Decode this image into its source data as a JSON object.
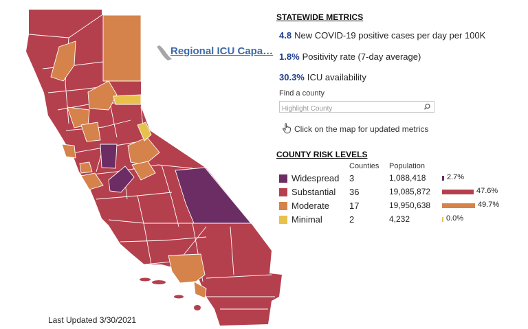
{
  "regional_link": "Regional ICU Capa…",
  "last_updated": "Last Updated 3/30/2021",
  "statewide": {
    "title": "STATEWIDE METRICS",
    "metrics": [
      {
        "value": "4.8",
        "label": "New COVID-19 positive cases per day per 100K"
      },
      {
        "value": "1.8%",
        "label": "Positivity rate (7-day average)"
      },
      {
        "value": "30.3%",
        "label": "ICU availability"
      }
    ]
  },
  "search": {
    "label": "Find a county",
    "placeholder": "Highlight County"
  },
  "hint": "Click on the map for updated metrics",
  "risk": {
    "title": "COUNTY RISK LEVELS",
    "col_counties": "Counties",
    "col_population": "Population",
    "levels": [
      {
        "name": "Widespread",
        "counties": "3",
        "population": "1,088,418",
        "pct": "2.7%",
        "fraction": 0.027,
        "color": "#6b2d64"
      },
      {
        "name": "Substantial",
        "counties": "36",
        "population": "19,085,872",
        "pct": "47.6%",
        "fraction": 0.476,
        "color": "#b5404d"
      },
      {
        "name": "Moderate",
        "counties": "17",
        "population": "19,950,638",
        "pct": "49.7%",
        "fraction": 0.497,
        "color": "#d5834b"
      },
      {
        "name": "Minimal",
        "counties": "2",
        "population": "4,232",
        "pct": "0.0%",
        "fraction": 0.0,
        "color": "#e8c14c"
      }
    ]
  }
}
